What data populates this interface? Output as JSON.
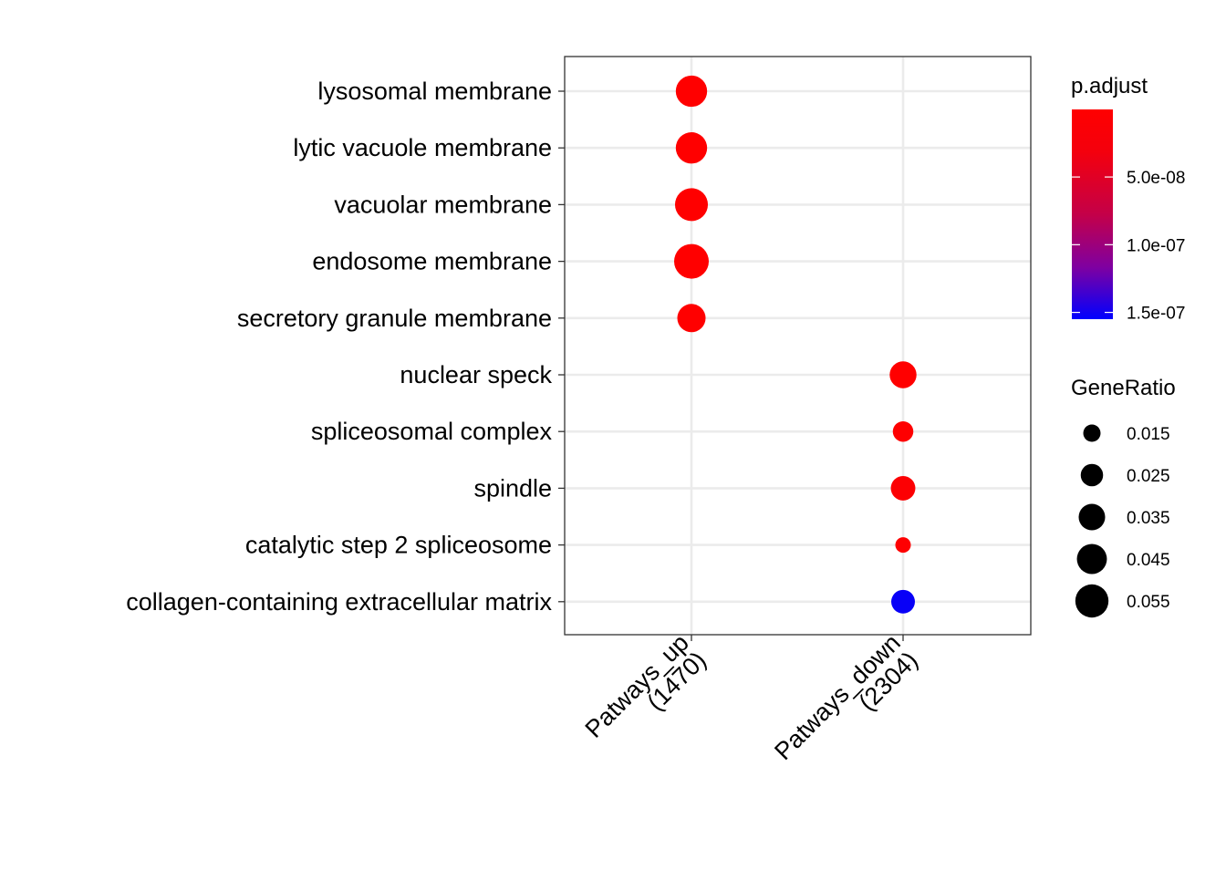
{
  "chart_data": {
    "type": "scatter",
    "subtype": "dotplot",
    "categories_x": [
      "Patways_up\n(1470)",
      "Patways_down\n(2304)"
    ],
    "categories_y": [
      "lysosomal membrane",
      "lytic vacuole membrane",
      "vacuolar membrane",
      "endosome membrane",
      "secretory granule membrane",
      "nuclear speck",
      "spliceosomal complex",
      "spindle",
      "catalytic step 2 spliceosome",
      "collagen-containing extracellular matrix"
    ],
    "points": [
      {
        "x": "Patways_up\n(1470)",
        "y": "lysosomal membrane",
        "gene_ratio": 0.049,
        "p_adjust": 1e-10
      },
      {
        "x": "Patways_up\n(1470)",
        "y": "lytic vacuole membrane",
        "gene_ratio": 0.049,
        "p_adjust": 1e-10
      },
      {
        "x": "Patways_up\n(1470)",
        "y": "vacuolar membrane",
        "gene_ratio": 0.054,
        "p_adjust": 1e-10
      },
      {
        "x": "Patways_up\n(1470)",
        "y": "endosome membrane",
        "gene_ratio": 0.06,
        "p_adjust": 1e-10
      },
      {
        "x": "Patways_up\n(1470)",
        "y": "secretory granule membrane",
        "gene_ratio": 0.04,
        "p_adjust": 1e-10
      },
      {
        "x": "Patways_down\n(2304)",
        "y": "nuclear speck",
        "gene_ratio": 0.036,
        "p_adjust": 1e-10
      },
      {
        "x": "Patways_down\n(2304)",
        "y": "spliceosomal complex",
        "gene_ratio": 0.021,
        "p_adjust": 1e-09
      },
      {
        "x": "Patways_down\n(2304)",
        "y": "spindle",
        "gene_ratio": 0.03,
        "p_adjust": 2e-09
      },
      {
        "x": "Patways_down\n(2304)",
        "y": "catalytic step 2 spliceosome",
        "gene_ratio": 0.012,
        "p_adjust": 1e-09
      },
      {
        "x": "Patways_down\n(2304)",
        "y": "collagen-containing extracellular matrix",
        "gene_ratio": 0.028,
        "p_adjust": 1.5e-07
      }
    ],
    "legend_color": {
      "title": "p.adjust",
      "ticks": [
        {
          "value": 5e-08,
          "label": "5.0e-08"
        },
        {
          "value": 1e-07,
          "label": "1.0e-07"
        },
        {
          "value": 1.5e-07,
          "label": "1.5e-07"
        }
      ],
      "range": [
        1e-10,
        1.55e-07
      ],
      "low_color": "#ff0000",
      "high_color": "#0000ff"
    },
    "legend_size": {
      "title": "GeneRatio",
      "entries": [
        {
          "value": 0.015,
          "label": "0.015"
        },
        {
          "value": 0.025,
          "label": "0.025"
        },
        {
          "value": 0.035,
          "label": "0.035"
        },
        {
          "value": 0.045,
          "label": "0.045"
        },
        {
          "value": 0.055,
          "label": "0.055"
        }
      ]
    },
    "grid": true,
    "legend_position": "right"
  }
}
